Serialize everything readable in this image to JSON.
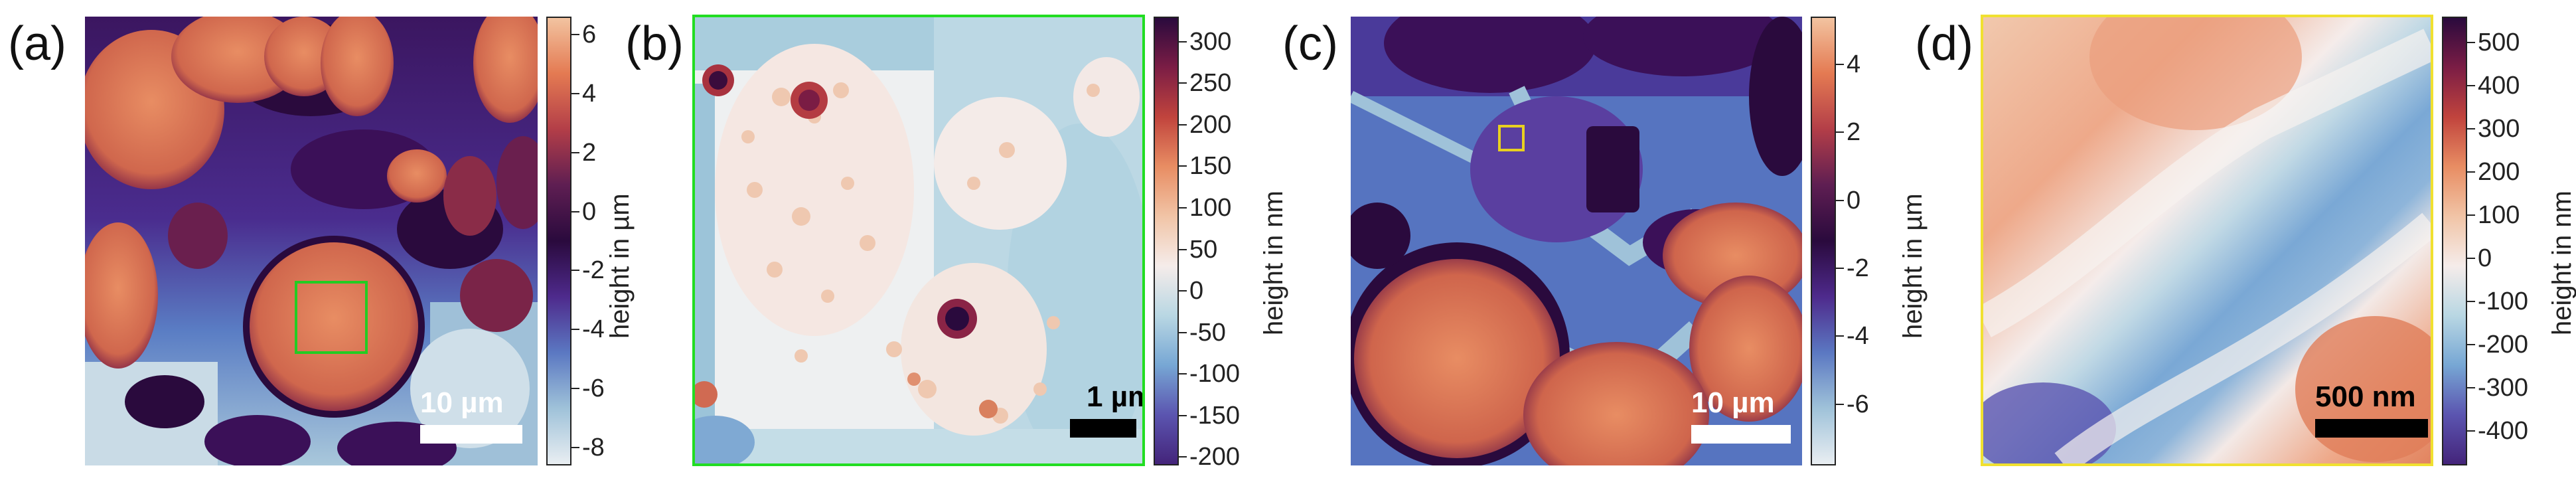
{
  "panels": [
    {
      "label": "(a)",
      "colorbar": {
        "title": "height in µm",
        "ticks": [
          "6",
          "4",
          "2",
          "0",
          "-2",
          "-4",
          "-6",
          "-8"
        ],
        "range": [
          -8.6,
          6.6
        ],
        "colors": [
          "#f2c3a0",
          "#e47a52",
          "#b33e48",
          "#5e1e52",
          "#2a0a3d",
          "#4e2a8c",
          "#5b78c2",
          "#9fc2d9",
          "#e9eef2"
        ]
      },
      "scalebar": "10 µm",
      "box_color": "#22cc22"
    },
    {
      "label": "(b)",
      "colorbar": {
        "title": "height in nm",
        "ticks": [
          "300",
          "250",
          "200",
          "150",
          "100",
          "50",
          "0",
          "-50",
          "-100",
          "-150",
          "-200"
        ],
        "range": [
          -210,
          330
        ],
        "colors": [
          "#2a0a3d",
          "#7b1d45",
          "#c1443d",
          "#e88d63",
          "#f1c4a6",
          "#f5ecea",
          "#b9d7e3",
          "#77a7d4",
          "#5b55b0",
          "#44247a"
        ]
      },
      "scalebar": "1 µm",
      "frame_color": "#22dd22"
    },
    {
      "label": "(c)",
      "colorbar": {
        "title": "height in µm",
        "ticks": [
          "4",
          "2",
          "0",
          "-2",
          "-4",
          "-6"
        ],
        "range": [
          -7.8,
          5.4
        ],
        "colors": [
          "#f2c3a0",
          "#e47a52",
          "#b33e48",
          "#5e1e52",
          "#2a0a3d",
          "#4e2a8c",
          "#5b78c2",
          "#9fc2d9",
          "#e9eef2"
        ]
      },
      "scalebar": "10 µm",
      "box_color": "#e8d020"
    },
    {
      "label": "(d)",
      "colorbar": {
        "title": "height in nm",
        "ticks": [
          "500",
          "400",
          "300",
          "200",
          "100",
          "0",
          "-100",
          "-200",
          "-300",
          "-400"
        ],
        "range": [
          -480,
          560
        ],
        "colors": [
          "#2a0a3d",
          "#7b1d45",
          "#c1443d",
          "#e88d63",
          "#f1c4a6",
          "#f5ecea",
          "#b9d7e3",
          "#77a7d4",
          "#5b55b0",
          "#44247a"
        ]
      },
      "scalebar": "500 nm",
      "frame_color": "#f0e030"
    }
  ]
}
